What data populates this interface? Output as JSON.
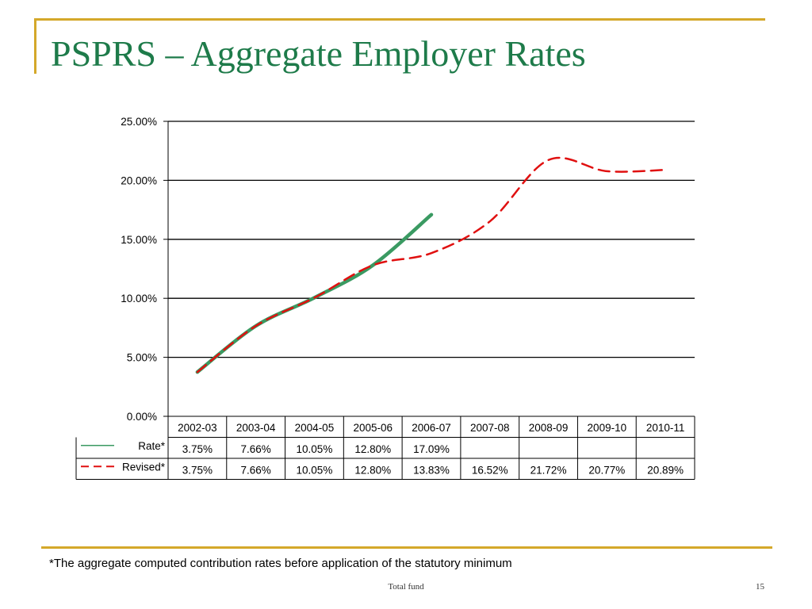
{
  "slide": {
    "title": "PSPRS – Aggregate Employer Rates",
    "footnote": "*The aggregate computed contribution rates before application of the statutory minimum",
    "footer_text": "Total fund",
    "page_number": "15"
  },
  "colors": {
    "accent": "#d4a82a",
    "title": "#1e7b4a",
    "rate_line": "#3a9a62",
    "revised_line": "#e01010"
  },
  "chart_data": {
    "type": "line",
    "categories": [
      "2002-03",
      "2003-04",
      "2004-05",
      "2005-06",
      "2006-07",
      "2007-08",
      "2008-09",
      "2009-10",
      "2010-11"
    ],
    "yticks": [
      "0.00%",
      "5.00%",
      "10.00%",
      "15.00%",
      "20.00%",
      "25.00%"
    ],
    "ylim": [
      0,
      25
    ],
    "grid": true,
    "legend": "data-table",
    "series": [
      {
        "name": "Rate*",
        "style": "solid",
        "values": [
          3.75,
          7.66,
          10.05,
          12.8,
          17.09,
          null,
          null,
          null,
          null
        ],
        "labels": [
          "3.75%",
          "7.66%",
          "10.05%",
          "12.80%",
          "17.09%",
          "",
          "",
          "",
          ""
        ]
      },
      {
        "name": "Revised*",
        "style": "dashed",
        "values": [
          3.75,
          7.66,
          10.05,
          12.8,
          13.83,
          16.52,
          21.72,
          20.77,
          20.89
        ],
        "labels": [
          "3.75%",
          "7.66%",
          "10.05%",
          "12.80%",
          "13.83%",
          "16.52%",
          "21.72%",
          "20.77%",
          "20.89%"
        ]
      }
    ]
  }
}
